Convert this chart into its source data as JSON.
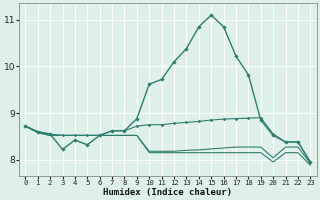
{
  "bg_color": "#dff0eb",
  "grid_color": "#ffffff",
  "line_color": "#2e7d6e",
  "xlabel": "Humidex (Indice chaleur)",
  "xlim": [
    -0.5,
    23.5
  ],
  "ylim": [
    7.65,
    11.35
  ],
  "yticks": [
    8,
    9,
    10,
    11
  ],
  "xticks": [
    0,
    1,
    2,
    3,
    4,
    5,
    6,
    7,
    8,
    9,
    10,
    11,
    12,
    13,
    14,
    15,
    16,
    17,
    18,
    19,
    20,
    21,
    22,
    23
  ],
  "line1_x": [
    0,
    1,
    2,
    3,
    4,
    5,
    6,
    7,
    8,
    9,
    10,
    11,
    12,
    13,
    14,
    15,
    16,
    17,
    18,
    19,
    20,
    21,
    22,
    23
  ],
  "line1_y": [
    8.72,
    8.6,
    8.55,
    8.22,
    8.42,
    8.32,
    8.52,
    8.62,
    8.62,
    8.88,
    9.62,
    9.72,
    10.1,
    10.38,
    10.85,
    11.1,
    10.85,
    10.22,
    9.82,
    8.85,
    8.52,
    8.38,
    8.38,
    7.95
  ],
  "line2_x": [
    0,
    1,
    2,
    3,
    4,
    5,
    6,
    7,
    8,
    9,
    10,
    11,
    12,
    13,
    14,
    15,
    16,
    17,
    18,
    19,
    20,
    21,
    22,
    23
  ],
  "line2_y": [
    8.72,
    8.6,
    8.55,
    8.52,
    8.52,
    8.52,
    8.52,
    8.62,
    8.62,
    8.72,
    8.75,
    8.75,
    8.78,
    8.8,
    8.82,
    8.85,
    8.87,
    8.88,
    8.89,
    8.9,
    8.55,
    8.38,
    8.38,
    7.95
  ],
  "line3_x": [
    0,
    1,
    2,
    3,
    4,
    5,
    6,
    7,
    8,
    9,
    10,
    11,
    12,
    13,
    14,
    15,
    16,
    17,
    18,
    19,
    20,
    21,
    22,
    23
  ],
  "line3_y": [
    8.72,
    8.58,
    8.52,
    8.52,
    8.52,
    8.52,
    8.52,
    8.52,
    8.52,
    8.52,
    8.18,
    8.18,
    8.18,
    8.2,
    8.21,
    8.23,
    8.25,
    8.27,
    8.27,
    8.27,
    8.04,
    8.27,
    8.27,
    7.92
  ],
  "line4_x": [
    0,
    1,
    2,
    3,
    4,
    5,
    6,
    7,
    8,
    9,
    10,
    11,
    12,
    13,
    14,
    15,
    16,
    17,
    18,
    19,
    20,
    21,
    22,
    23
  ],
  "line4_y": [
    8.72,
    8.58,
    8.52,
    8.52,
    8.52,
    8.52,
    8.52,
    8.52,
    8.52,
    8.52,
    8.15,
    8.15,
    8.15,
    8.15,
    8.15,
    8.15,
    8.15,
    8.15,
    8.15,
    8.15,
    7.95,
    8.15,
    8.15,
    7.88
  ]
}
